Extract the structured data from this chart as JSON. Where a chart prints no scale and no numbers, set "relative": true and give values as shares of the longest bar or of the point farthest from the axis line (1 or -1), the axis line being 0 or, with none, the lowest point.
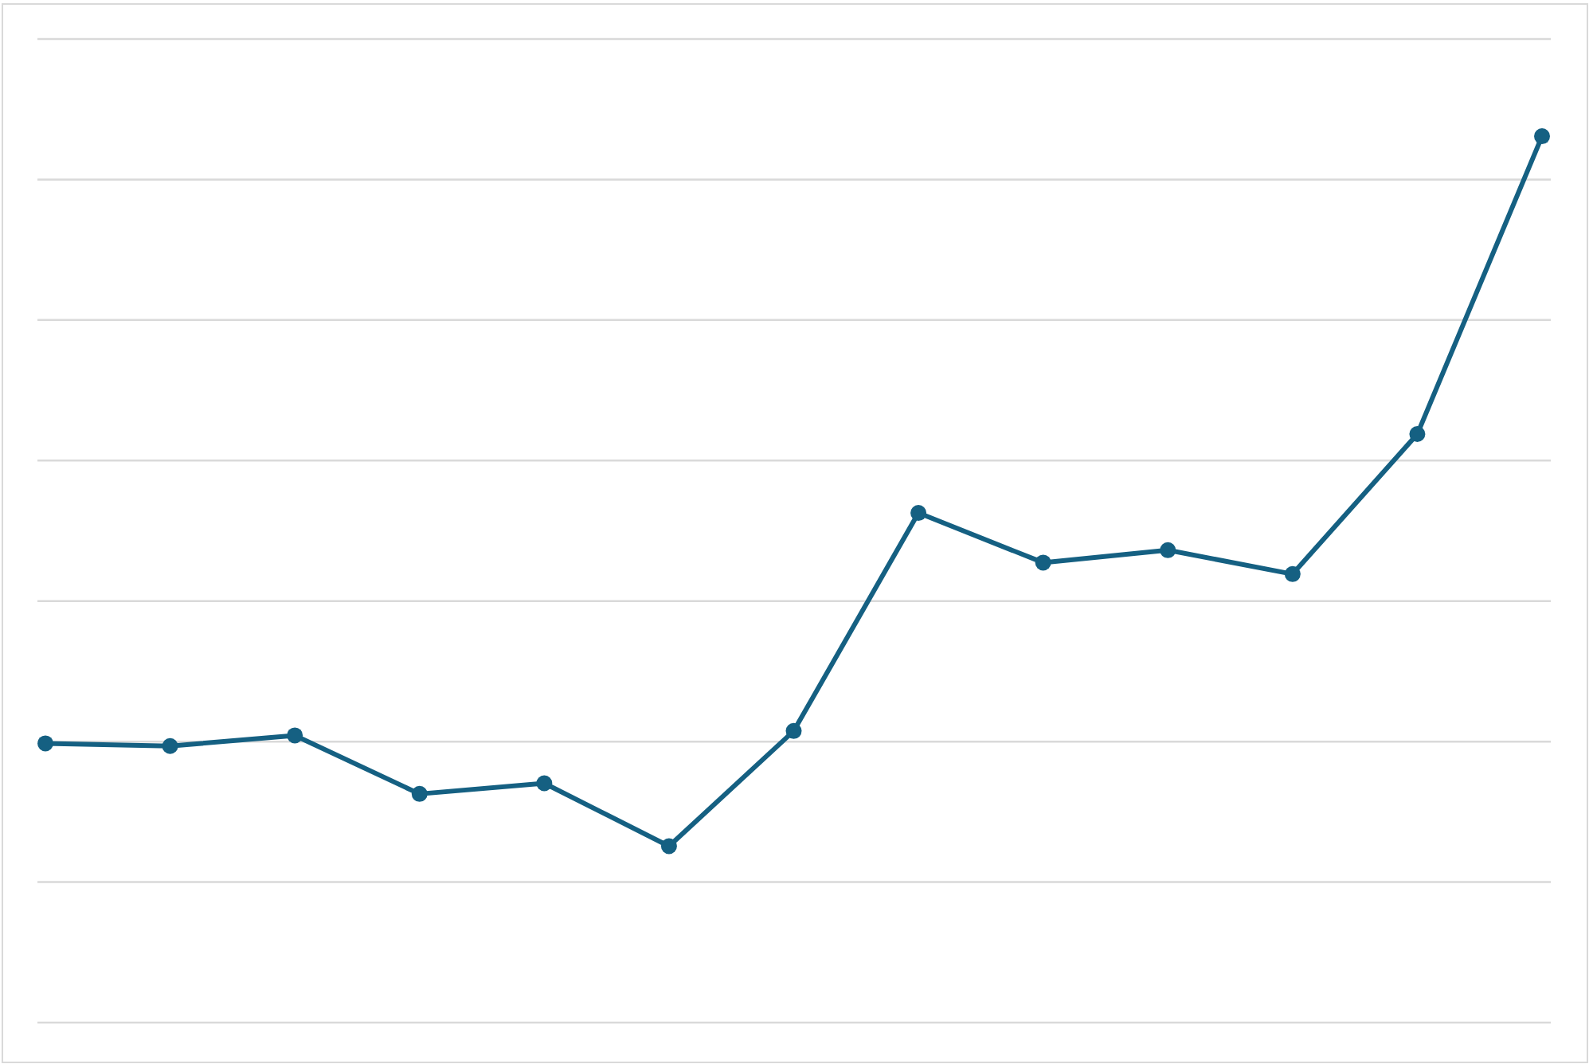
{
  "chart_data": {
    "type": "line",
    "relative": true,
    "categories": [
      null,
      null,
      null,
      null,
      null,
      null,
      null,
      null,
      null,
      null,
      null,
      null,
      null
    ],
    "series": [
      {
        "color": "#156082",
        "values": [
          0.315,
          0.312,
          0.324,
          0.258,
          0.27,
          0.199,
          0.329,
          0.575,
          0.519,
          0.533,
          0.506,
          0.664,
          1
        ]
      }
    ],
    "marker": "circle",
    "line_style": "solid",
    "grid": "y"
  }
}
